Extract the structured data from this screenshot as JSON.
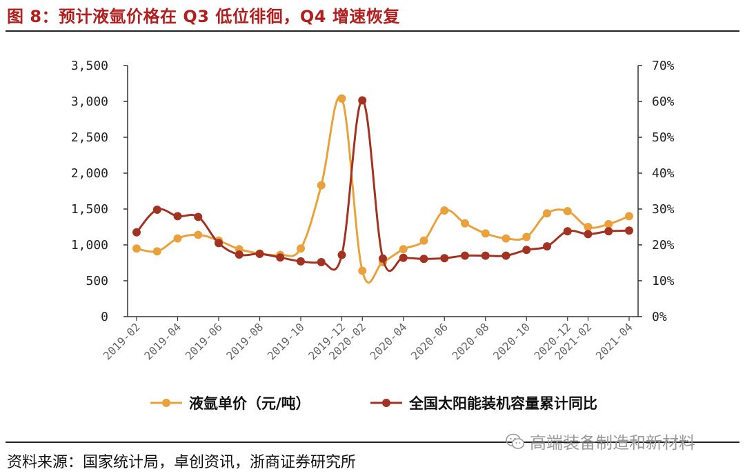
{
  "header": {
    "title": "图 8：预计液氩价格在 Q3 低位徘徊，Q4 增速恢复"
  },
  "footer": {
    "source": "资料来源：国家统计局，卓创资讯，浙商证券研究所",
    "watermark": "高端装备制造和新材料",
    "watermark_icon": "wechat-icon"
  },
  "colors": {
    "series_price": "#e9a23b",
    "series_growth": "#a23222",
    "title": "#b01e1e",
    "axis": "#333333"
  },
  "chart_data": {
    "type": "line",
    "title": "",
    "x": [
      "2019-02",
      "2019-03",
      "2019-04",
      "2019-05",
      "2019-06",
      "2019-07",
      "2019-08",
      "2019-09",
      "2019-10",
      "2019-11",
      "2019-12",
      "2020-02",
      "2020-03",
      "2020-04",
      "2020-05",
      "2020-06",
      "2020-07",
      "2020-08",
      "2020-09",
      "2020-10",
      "2020-11",
      "2020-12",
      "2021-02",
      "2021-03",
      "2021-04"
    ],
    "x_tick_labels": [
      "2019-02",
      "2019-04",
      "2019-06",
      "2019-08",
      "2019-10",
      "2019-12",
      "2020-02",
      "2020-04",
      "2020-06",
      "2020-08",
      "2020-10",
      "2020-12",
      "2021-02",
      "2021-04"
    ],
    "left_axis": {
      "ylim": [
        0,
        3500
      ],
      "ticks": [
        0,
        500,
        1000,
        1500,
        2000,
        2500,
        3000,
        3500
      ],
      "tick_labels": [
        "0",
        "500",
        "1,000",
        "1,500",
        "2,000",
        "2,500",
        "3,000",
        "3,500"
      ]
    },
    "right_axis": {
      "ylim": [
        0,
        70
      ],
      "ticks": [
        0,
        10,
        20,
        30,
        40,
        50,
        60,
        70
      ],
      "tick_labels": [
        "0%",
        "10%",
        "20%",
        "30%",
        "40%",
        "50%",
        "60%",
        "70%"
      ]
    },
    "series": [
      {
        "name": "液氩单价（元/吨）",
        "axis": "left",
        "color": "#e9a23b",
        "values": [
          950,
          910,
          1090,
          1140,
          1060,
          940,
          880,
          860,
          950,
          1830,
          3040,
          640,
          760,
          940,
          1060,
          1480,
          1300,
          1160,
          1090,
          1110,
          1440,
          1470,
          1250,
          1290,
          1400
        ]
      },
      {
        "name": "全国太阳能装机容量累计同比",
        "axis": "right",
        "color": "#a23222",
        "values": [
          23.5,
          29.8,
          28.0,
          27.8,
          20.5,
          17.3,
          17.5,
          16.5,
          15.4,
          15.2,
          17.2,
          60.3,
          16.2,
          16.4,
          16.1,
          16.3,
          17.0,
          17.0,
          17.0,
          18.6,
          19.6,
          23.8,
          23.0,
          23.8,
          24.0
        ]
      }
    ],
    "legend_position": "bottom",
    "grid": false
  }
}
